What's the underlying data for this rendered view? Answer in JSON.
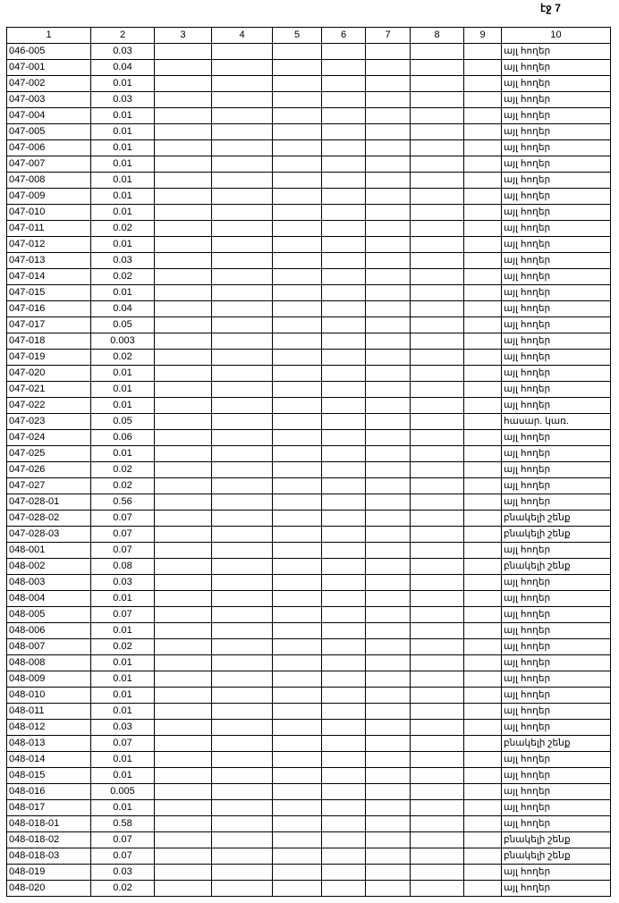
{
  "page_label": "էջ 7",
  "columns": [
    "1",
    "2",
    "3",
    "4",
    "5",
    "6",
    "7",
    "8",
    "9",
    "10"
  ],
  "rows": [
    [
      "046-005",
      "0.03",
      "այլ հողեր"
    ],
    [
      "047-001",
      "0.04",
      "այլ հողեր"
    ],
    [
      "047-002",
      "0.01",
      "այլ հողեր"
    ],
    [
      "047-003",
      "0.03",
      "այլ հողեր"
    ],
    [
      "047-004",
      "0.01",
      "այլ հողեր"
    ],
    [
      "047-005",
      "0.01",
      "այլ հողեր"
    ],
    [
      "047-006",
      "0.01",
      "այլ հողեր"
    ],
    [
      "047-007",
      "0.01",
      "այլ հողեր"
    ],
    [
      "047-008",
      "0.01",
      "այլ հողեր"
    ],
    [
      "047-009",
      "0.01",
      "այլ հողեր"
    ],
    [
      "047-010",
      "0.01",
      "այլ հողեր"
    ],
    [
      "047-011",
      "0.02",
      "այլ հողեր"
    ],
    [
      "047-012",
      "0.01",
      "այլ հողեր"
    ],
    [
      "047-013",
      "0.03",
      "այլ հողեր"
    ],
    [
      "047-014",
      "0.02",
      "այլ հողեր"
    ],
    [
      "047-015",
      "0.01",
      "այլ հողեր"
    ],
    [
      "047-016",
      "0.04",
      "այլ հողեր"
    ],
    [
      "047-017",
      "0.05",
      "այլ հողեր"
    ],
    [
      "047-018",
      "0.003",
      "այլ հողեր"
    ],
    [
      "047-019",
      "0.02",
      "այլ հողեր"
    ],
    [
      "047-020",
      "0.01",
      "այլ հողեր"
    ],
    [
      "047-021",
      "0.01",
      "այլ հողեր"
    ],
    [
      "047-022",
      "0.01",
      "այլ հողեր"
    ],
    [
      "047-023",
      "0.05",
      "հասար. կառ."
    ],
    [
      "047-024",
      "0.06",
      "այլ հողեր"
    ],
    [
      "047-025",
      "0.01",
      "այլ հողեր"
    ],
    [
      "047-026",
      "0.02",
      "այլ հողեր"
    ],
    [
      "047-027",
      "0.02",
      "այլ հողեր"
    ],
    [
      "047-028-01",
      "0.56",
      "այլ հողեր"
    ],
    [
      "047-028-02",
      "0.07",
      "բնակելի շենք"
    ],
    [
      "047-028-03",
      "0.07",
      "բնակելի շենք"
    ],
    [
      "048-001",
      "0.07",
      "այլ հողեր"
    ],
    [
      "048-002",
      "0.08",
      "բնակելի շենք"
    ],
    [
      "048-003",
      "0.03",
      "այլ հողեր"
    ],
    [
      "048-004",
      "0.01",
      "այլ հողեր"
    ],
    [
      "048-005",
      "0.07",
      "այլ հողեր"
    ],
    [
      "048-006",
      "0.01",
      "այլ հողեր"
    ],
    [
      "048-007",
      "0.02",
      "այլ հողեր"
    ],
    [
      "048-008",
      "0.01",
      "այլ հողեր"
    ],
    [
      "048-009",
      "0.01",
      "այլ հողեր"
    ],
    [
      "048-010",
      "0.01",
      "այլ հողեր"
    ],
    [
      "048-011",
      "0.01",
      "այլ հողեր"
    ],
    [
      "048-012",
      "0.03",
      "այլ հողեր"
    ],
    [
      "048-013",
      "0.07",
      "բնակելի շենք"
    ],
    [
      "048-014",
      "0.01",
      "այլ հողեր"
    ],
    [
      "048-015",
      "0.01",
      "այլ հողեր"
    ],
    [
      "048-016",
      "0.005",
      "այլ հողեր"
    ],
    [
      "048-017",
      "0.01",
      "այլ հողեր"
    ],
    [
      "048-018-01",
      "0.58",
      "այլ հողեր"
    ],
    [
      "048-018-02",
      "0.07",
      "բնակելի շենք"
    ],
    [
      "048-018-03",
      "0.07",
      "բնակելի շենք"
    ],
    [
      "048-019",
      "0.03",
      "այլ հողեր"
    ],
    [
      "048-020",
      "0.02",
      "այլ հողեր"
    ]
  ]
}
